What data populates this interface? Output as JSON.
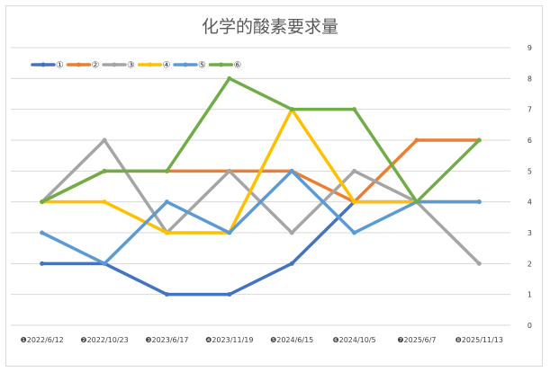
{
  "chart_data": {
    "type": "line",
    "title": "化学的酸素要求量",
    "xlabel": "",
    "ylabel": "",
    "categories": [
      "❶2022/6/12",
      "❷2022/10/23",
      "❸2023/6/17",
      "❹2023/11/19",
      "❺2024/6/15",
      "❻2024/10/5",
      "❼2025/6/7",
      "❽2025/11/13"
    ],
    "ylim": [
      0,
      9
    ],
    "yticks": [
      0,
      1,
      2,
      3,
      4,
      5,
      6,
      7,
      8,
      9
    ],
    "y_axis_side": "right",
    "grid": true,
    "legend_position": "top-left",
    "series": [
      {
        "name": "①",
        "color": "#4472c4",
        "values": [
          2,
          2,
          1,
          1,
          2,
          4,
          4,
          4
        ]
      },
      {
        "name": "②",
        "color": "#ed7d31",
        "values": [
          4,
          5,
          5,
          5,
          5,
          4,
          6,
          6
        ]
      },
      {
        "name": "③",
        "color": "#a5a5a5",
        "values": [
          4,
          6,
          3,
          5,
          3,
          5,
          4,
          2
        ]
      },
      {
        "name": "④",
        "color": "#ffc000",
        "values": [
          4,
          4,
          3,
          3,
          7,
          4,
          4,
          4
        ]
      },
      {
        "name": "⑤",
        "color": "#5b9bd5",
        "values": [
          3,
          2,
          4,
          3,
          5,
          3,
          4,
          4
        ]
      },
      {
        "name": "⑥",
        "color": "#70ad47",
        "values": [
          4,
          5,
          5,
          8,
          7,
          7,
          4,
          6
        ]
      }
    ]
  }
}
